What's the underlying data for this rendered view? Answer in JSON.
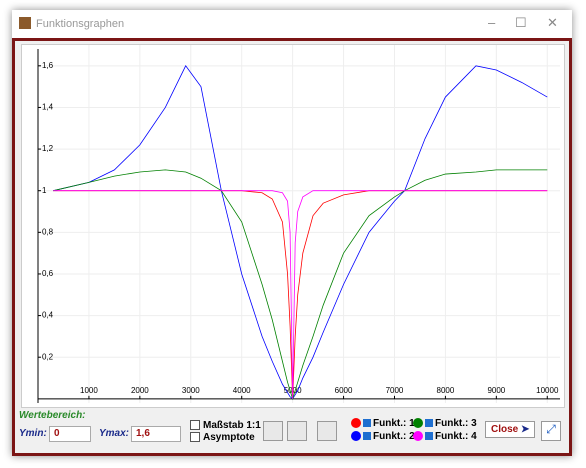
{
  "window": {
    "title": "Funktionsgraphen"
  },
  "chart_data": {
    "type": "line",
    "x": [
      300,
      1000,
      1500,
      2000,
      2500,
      2900,
      3200,
      3600,
      4000,
      4400,
      4600,
      4800,
      4900,
      4950,
      5000,
      5050,
      5100,
      5200,
      5400,
      5600,
      6000,
      6500,
      7000,
      7200,
      7600,
      8000,
      8600,
      9000,
      9500,
      10000
    ],
    "series": [
      {
        "name": "Funkt.: 1",
        "color": "#ff0000",
        "values": [
          1,
          1,
          1,
          1,
          1,
          1,
          1,
          1,
          1,
          0.99,
          0.96,
          0.85,
          0.6,
          0.35,
          0,
          0.3,
          0.5,
          0.7,
          0.88,
          0.94,
          0.98,
          1,
          1,
          1,
          1,
          1,
          1,
          1,
          1,
          1
        ]
      },
      {
        "name": "Funkt.: 2",
        "color": "#0000ff",
        "values": [
          1,
          1.04,
          1.1,
          1.22,
          1.4,
          1.6,
          1.5,
          1,
          0.6,
          0.3,
          0.18,
          0.07,
          0.03,
          0.01,
          0,
          0.02,
          0.04,
          0.1,
          0.2,
          0.32,
          0.55,
          0.8,
          0.95,
          1,
          1.25,
          1.45,
          1.6,
          1.58,
          1.52,
          1.45
        ]
      },
      {
        "name": "Funkt.: 3",
        "color": "#008000",
        "values": [
          1,
          1.04,
          1.07,
          1.09,
          1.1,
          1.09,
          1.06,
          1,
          0.85,
          0.55,
          0.38,
          0.18,
          0.08,
          0.04,
          0,
          0.04,
          0.08,
          0.16,
          0.3,
          0.45,
          0.7,
          0.88,
          0.97,
          1,
          1.05,
          1.08,
          1.09,
          1.1,
          1.1,
          1.1
        ]
      },
      {
        "name": "Funkt.: 4",
        "color": "#ff00ff",
        "values": [
          1,
          1,
          1,
          1,
          1,
          1,
          1,
          1,
          1,
          1,
          1,
          0.99,
          0.95,
          0.8,
          0,
          0.75,
          0.9,
          0.97,
          1,
          1,
          1,
          1,
          1,
          1,
          1,
          1,
          1,
          1,
          1,
          1
        ]
      }
    ],
    "xlim": [
      0,
      10250
    ],
    "ylim": [
      -0.02,
      1.7
    ],
    "xticks": [
      1000,
      2000,
      3000,
      4000,
      5000,
      6000,
      7000,
      8000,
      9000,
      10000
    ],
    "yticks": [
      {
        "value": 0.2,
        "label": "0,2"
      },
      {
        "value": 0.4,
        "label": "0,4"
      },
      {
        "value": 0.6,
        "label": "0,6"
      },
      {
        "value": 0.8,
        "label": "0,8"
      },
      1,
      {
        "value": 1.2,
        "label": "1,2"
      },
      {
        "value": 1.4,
        "label": "1,4"
      },
      {
        "value": 1.6,
        "label": "1,6"
      }
    ],
    "grid": true
  },
  "toolbar": {
    "range_label": "Wertebereich:",
    "ymin_label": "Ymin:",
    "ymin_value": "0",
    "ymax_label": "Ymax:",
    "ymax_value": "1,6",
    "checkboxes": [
      "Maßstab 1:1",
      "Asymptote"
    ],
    "close": "Close"
  }
}
